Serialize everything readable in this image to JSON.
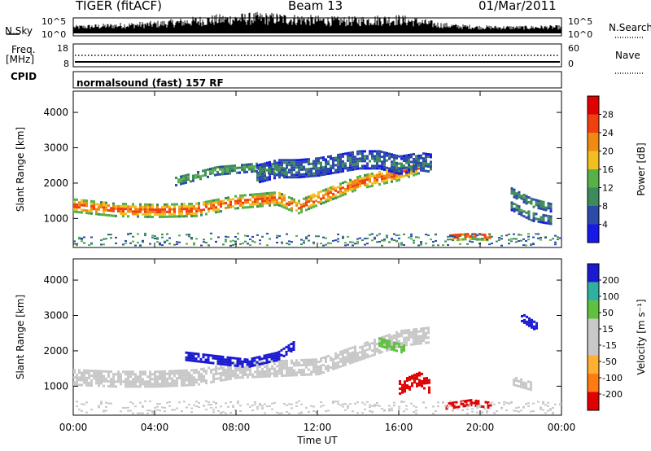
{
  "header": {
    "radar": "TIGER (fitACF)",
    "beam": "Beam 13",
    "date": "01/Mar/2011"
  },
  "left_labels": {
    "nsky": "N.Sky",
    "freq_line1": "Freq.",
    "freq_line2": "[MHz]",
    "cpid": "CPID"
  },
  "right_labels": {
    "nsearch": "N.Search",
    "nave": "Nave"
  },
  "mode_text": "normalsound (fast) 157 RF",
  "colors": {
    "frame": "#000000",
    "power_scale": [
      "#1818e8",
      "#2c4aa8",
      "#3e8a5a",
      "#58b048",
      "#f0c020",
      "#f08a10",
      "#f04010",
      "#e00000"
    ],
    "velocity_scale": [
      "#e00000",
      "#ff7a10",
      "#ffb030",
      "#c8c8c8",
      "#c8c8c8",
      "#60c040",
      "#30b0a0",
      "#1a1ad0"
    ]
  },
  "chart_data": [
    {
      "type": "line",
      "title": "",
      "ylabel": "N.Sky",
      "y2label": "N.Search",
      "yticks": [
        "10^5",
        "10^0"
      ],
      "y2ticks": [
        "10^5",
        "10^0"
      ],
      "x_unit": "hours UT",
      "series": [
        {
          "name": "N.Sky",
          "x": [
            0,
            1,
            2,
            3,
            4,
            5,
            6,
            7,
            8,
            9,
            10,
            11,
            12,
            13,
            14,
            15,
            16,
            17,
            18,
            19,
            20,
            21,
            22,
            23,
            24
          ],
          "values": [
            0.3,
            0.35,
            0.4,
            0.45,
            0.5,
            0.6,
            0.7,
            0.8,
            0.85,
            0.9,
            0.88,
            0.82,
            0.75,
            0.7,
            0.72,
            0.78,
            0.8,
            0.65,
            0.45,
            0.35,
            0.3,
            0.28,
            0.28,
            0.3,
            0.3
          ]
        }
      ]
    },
    {
      "type": "scatter",
      "ylabel": "Freq. [MHz]",
      "yticks": [
        18,
        8
      ],
      "y2label": "Nave",
      "y2ticks": [
        60,
        0
      ],
      "series": [
        {
          "name": "Freq.",
          "x": [
            0,
            24
          ],
          "values": [
            13,
            13
          ]
        },
        {
          "name": "Nave",
          "x": [
            0,
            24
          ],
          "values": [
            0,
            0
          ]
        }
      ]
    },
    {
      "type": "heatmap",
      "title": "",
      "xlabel": "Time UT",
      "ylabel": "Slant Range [km]",
      "xticks": [
        "00:00",
        "04:00",
        "08:00",
        "12:00",
        "16:00",
        "20:00",
        "00:00"
      ],
      "yticks": [
        1000,
        2000,
        3000,
        4000
      ],
      "xlim": [
        0,
        24
      ],
      "ylim": [
        180,
        4600
      ],
      "colorbar": {
        "label": "Power [dB]",
        "ticks": [
          4,
          8,
          12,
          16,
          20,
          24,
          28
        ],
        "range": [
          0,
          32
        ]
      },
      "bands": [
        {
          "x": [
            0,
            2,
            4,
            6,
            8,
            10,
            11,
            12,
            14,
            16,
            17
          ],
          "y": [
            1400,
            1280,
            1250,
            1280,
            1500,
            1600,
            1350,
            1600,
            2050,
            2300,
            2500
          ],
          "width": 350,
          "value": 24
        },
        {
          "x": [
            5,
            7,
            9,
            10.5
          ],
          "y": [
            2100,
            2400,
            2500,
            2350
          ],
          "width": 250,
          "value": 12
        },
        {
          "x": [
            9,
            10,
            11,
            12,
            13,
            14,
            15,
            16,
            17,
            17.6
          ],
          "y": [
            2300,
            2450,
            2450,
            2500,
            2600,
            2700,
            2700,
            2550,
            2650,
            2600
          ],
          "width": 500,
          "value": 8
        },
        {
          "x": [
            18.5,
            19.5,
            20.5
          ],
          "y": [
            520,
            560,
            520
          ],
          "width": 200,
          "value": 26
        },
        {
          "x": [
            21.5,
            22.5,
            23.5
          ],
          "y": [
            1800,
            1500,
            1350
          ],
          "width": 250,
          "value": 10
        },
        {
          "x": [
            21.5,
            22.5,
            23.5
          ],
          "y": [
            1400,
            1100,
            1000
          ],
          "width": 250,
          "value": 10
        }
      ]
    },
    {
      "type": "heatmap",
      "xlabel": "Time UT",
      "ylabel": "Slant Range [km]",
      "xticks": [
        "00:00",
        "04:00",
        "08:00",
        "12:00",
        "16:00",
        "20:00",
        "00:00"
      ],
      "yticks": [
        1000,
        2000,
        3000,
        4000
      ],
      "xlim": [
        0,
        24
      ],
      "ylim": [
        180,
        4600
      ],
      "colorbar": {
        "label": "Velocity [m s⁻¹]",
        "ticks": [
          200,
          100,
          50,
          15,
          -15,
          -50,
          -100,
          -200
        ],
        "range": [
          -250,
          250
        ]
      },
      "bands": [
        {
          "x": [
            0,
            2,
            4,
            6,
            8,
            10,
            12,
            14,
            16,
            17.5
          ],
          "y": [
            1300,
            1250,
            1250,
            1300,
            1500,
            1550,
            1600,
            2000,
            2400,
            2500
          ],
          "width": 450,
          "value": 0
        },
        {
          "x": [
            5.5,
            7,
            8.5,
            10,
            10.8
          ],
          "y": [
            1900,
            1800,
            1700,
            1900,
            2200
          ],
          "width": 250,
          "value": 220
        },
        {
          "x": [
            15,
            16.2
          ],
          "y": [
            2300,
            2100
          ],
          "width": 250,
          "value": 70
        },
        {
          "x": [
            16,
            17,
            17.5
          ],
          "y": [
            1000,
            1250,
            1000
          ],
          "width": 350,
          "value": -230
        },
        {
          "x": [
            18.3,
            19.5,
            20.5
          ],
          "y": [
            500,
            600,
            520
          ],
          "width": 200,
          "value": -200
        },
        {
          "x": [
            21.6,
            22.5
          ],
          "y": [
            1200,
            1050
          ],
          "width": 250,
          "value": 0
        },
        {
          "x": [
            22,
            22.8
          ],
          "y": [
            3000,
            2700
          ],
          "width": 250,
          "value": 220
        }
      ]
    }
  ]
}
